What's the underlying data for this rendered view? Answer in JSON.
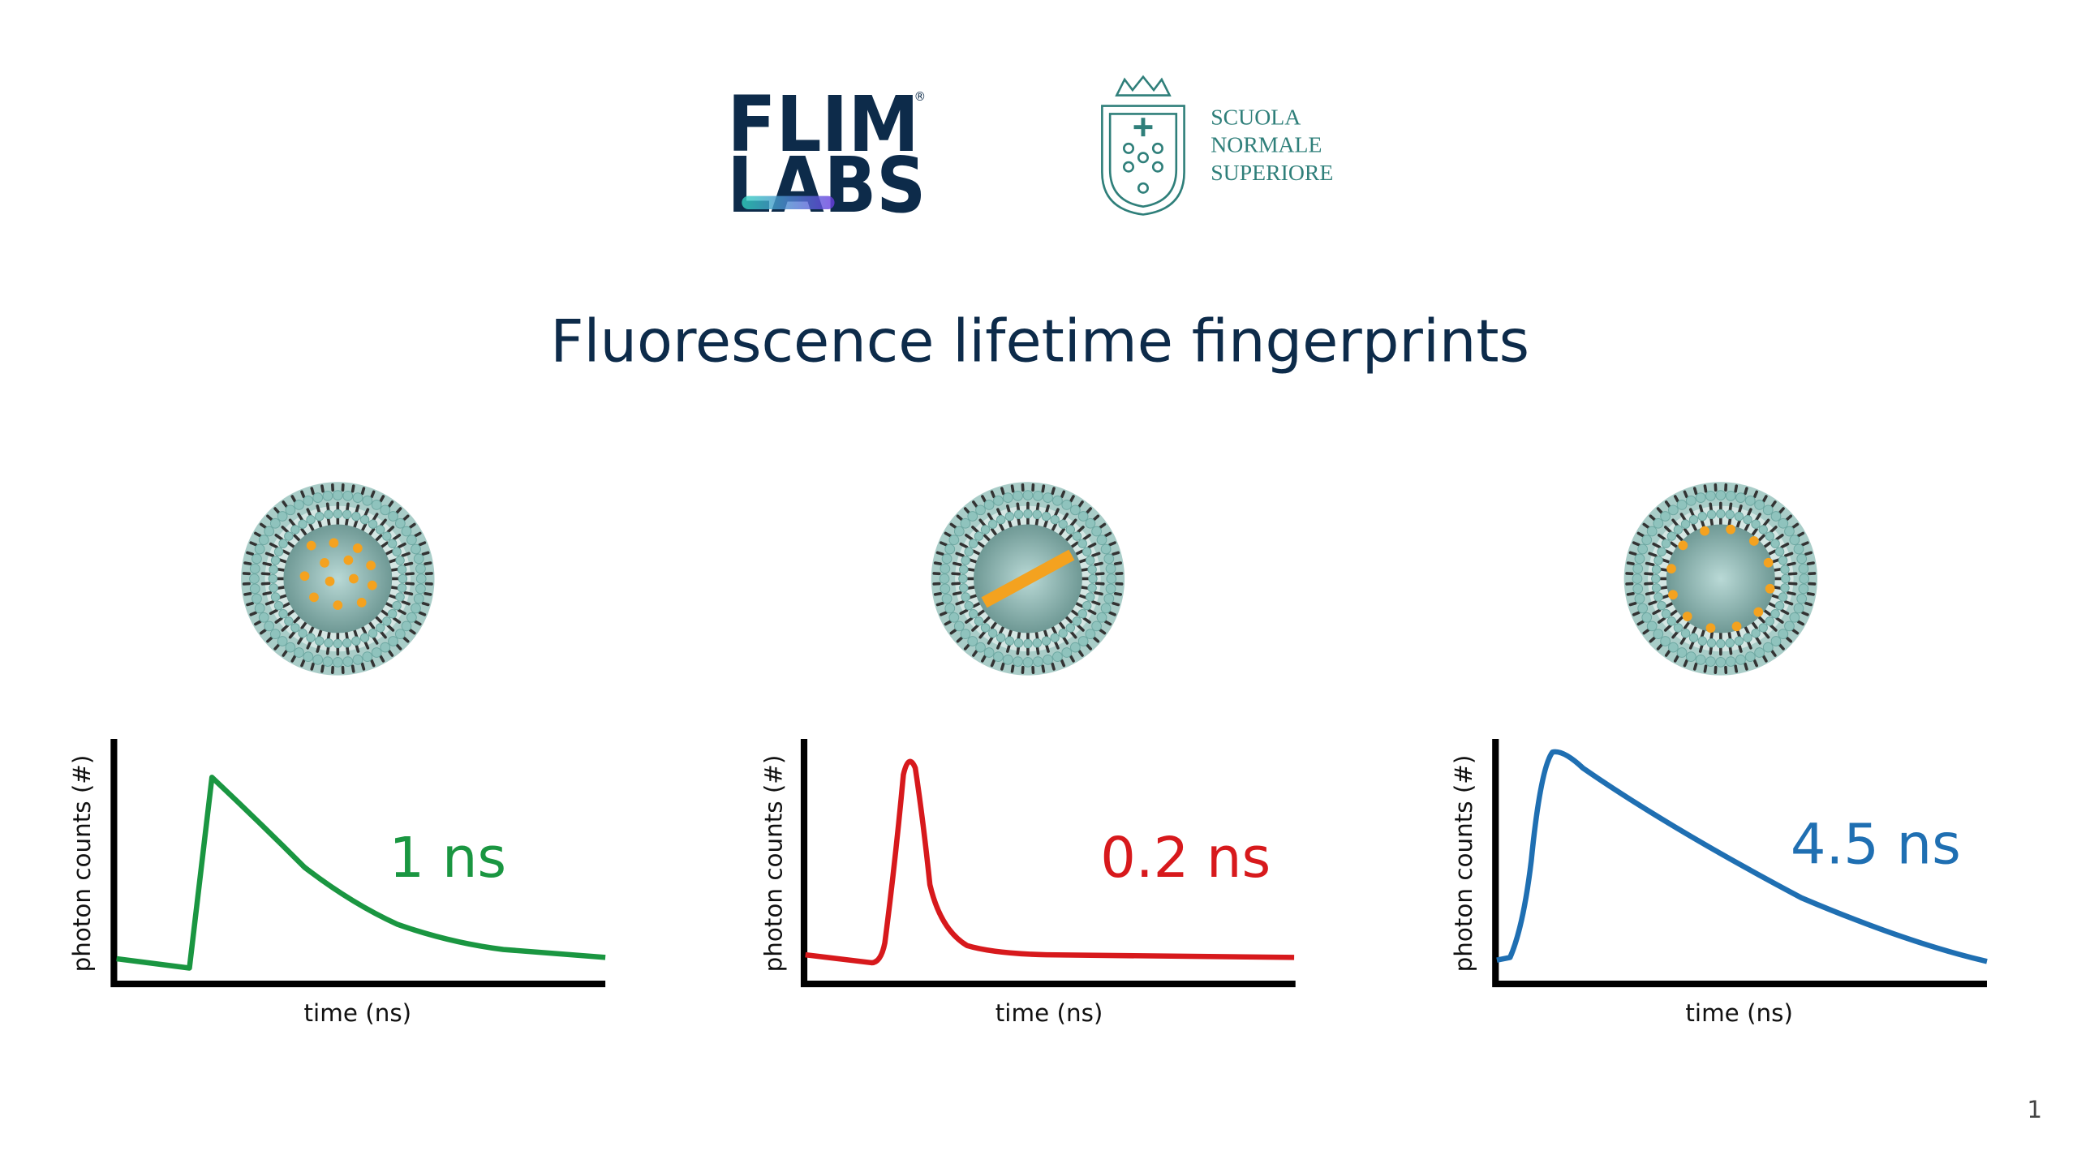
{
  "logos": {
    "flim_top": "FLIM",
    "flim_bottom": "LABS",
    "registered": "®",
    "sns": [
      "SCUOLA",
      "NORMALE",
      "SUPERIORE"
    ]
  },
  "title": "Fluorescence lifetime fingerprints",
  "panels": [
    {
      "lifetime": "1 ns",
      "x_label": "time (ns)",
      "y_label": "photon counts (#)"
    },
    {
      "lifetime": "0.2 ns",
      "x_label": "time (ns)",
      "y_label": "photon counts (#)"
    },
    {
      "lifetime": "4.5 ns",
      "x_label": "time (ns)",
      "y_label": "photon counts (#)"
    }
  ],
  "page_number": "1"
}
